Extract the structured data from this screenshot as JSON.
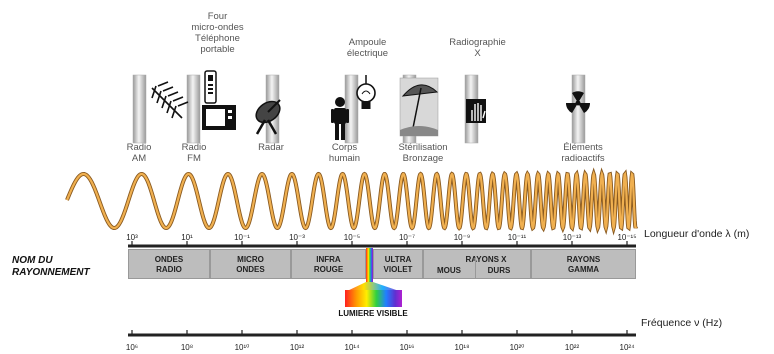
{
  "sources": {
    "four_top": [
      "Four",
      "micro-ondes",
      "Téléphone",
      "portable"
    ],
    "ampoule": [
      "Ampoule",
      "électrique"
    ],
    "radiographie": [
      "Radiographie",
      "X"
    ],
    "radio_am": [
      "Radio",
      "AM"
    ],
    "radio_fm": [
      "Radio",
      "FM"
    ],
    "radar": "Radar",
    "corps": [
      "Corps",
      "humain"
    ],
    "sterilisation": [
      "Stérilisation",
      "Bronzage"
    ],
    "elements": [
      "Éléments",
      "radioactifs"
    ]
  },
  "wavelength_axis": {
    "title": "Longueur d'onde λ (m)",
    "ticks": [
      "10³",
      "10¹",
      "10⁻¹",
      "10⁻³",
      "10⁻⁵",
      "10⁻⁷",
      "10⁻⁹",
      "10⁻¹¹",
      "10⁻¹³",
      "10⁻¹⁵"
    ]
  },
  "name_title": [
    "NOM DU",
    "RAYONNEMENT"
  ],
  "bands": {
    "radio": [
      "ONDES",
      "RADIO"
    ],
    "micro": [
      "MICRO",
      "ONDES"
    ],
    "infra": [
      "INFRA",
      "ROUGE"
    ],
    "ultra": [
      "ULTRA",
      "VIOLET"
    ],
    "xray_title": "RAYONS X",
    "mous": "MOUS",
    "durs": "DURS",
    "gamma": [
      "RAYONS",
      "GAMMA"
    ]
  },
  "visible_label": "LUMIERE VISIBLE",
  "frequency_axis": {
    "title": "Fréquence ν (Hz)",
    "ticks": [
      "10⁶",
      "10⁸",
      "10¹⁰",
      "10¹²",
      "10¹⁴",
      "10¹⁶",
      "10¹⁸",
      "10²⁰",
      "10²²",
      "10²⁴"
    ]
  },
  "colors": {
    "wave": "#e8a040",
    "band_fill": "#bdbdbd",
    "axis": "#222222"
  }
}
